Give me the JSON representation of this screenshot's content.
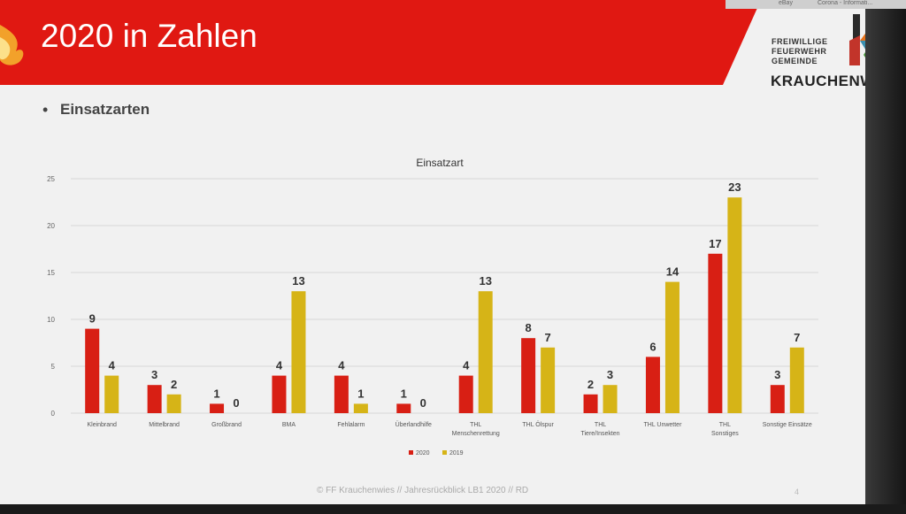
{
  "slide": {
    "title": "2020 in Zahlen",
    "bullet": "Einsatzarten",
    "footer": "© FF Krauchenwies // Jahresrückblick LB1 2020 // RD",
    "page_number": "4"
  },
  "logo": {
    "line1": "FREIWILLIGE",
    "line2": "FEUERWEHR",
    "line3": "GEMEINDE",
    "name": "KRAUCHENWIES"
  },
  "taskbar": {
    "item1": "eBay",
    "item2": "Corona - Informati..."
  },
  "colors": {
    "header_red": "#e01812",
    "series_2020": "#d81f14",
    "series_2019": "#d6b417"
  },
  "chart_data": {
    "type": "bar",
    "title": "Einsatzart",
    "categories": [
      "Kleinbrand",
      "Mittelbrand",
      "Großbrand",
      "BMA",
      "Fehlalarm",
      "Überlandhilfe",
      "THL Menschenrettung",
      "THL Ölspur",
      "THL Tiere/Insekten",
      "THL Unwetter",
      "THL Sonstiges",
      "Sonstige Einsätze"
    ],
    "series": [
      {
        "name": "2020",
        "values": [
          9,
          3,
          1,
          4,
          4,
          1,
          4,
          8,
          2,
          6,
          17,
          3
        ]
      },
      {
        "name": "2019",
        "values": [
          4,
          2,
          0,
          13,
          1,
          0,
          13,
          7,
          3,
          14,
          23,
          7
        ]
      }
    ],
    "ylim": [
      0,
      25
    ],
    "yticks": [
      0,
      5,
      10,
      15,
      20,
      25
    ],
    "grid": true,
    "legend_position": "bottom"
  }
}
